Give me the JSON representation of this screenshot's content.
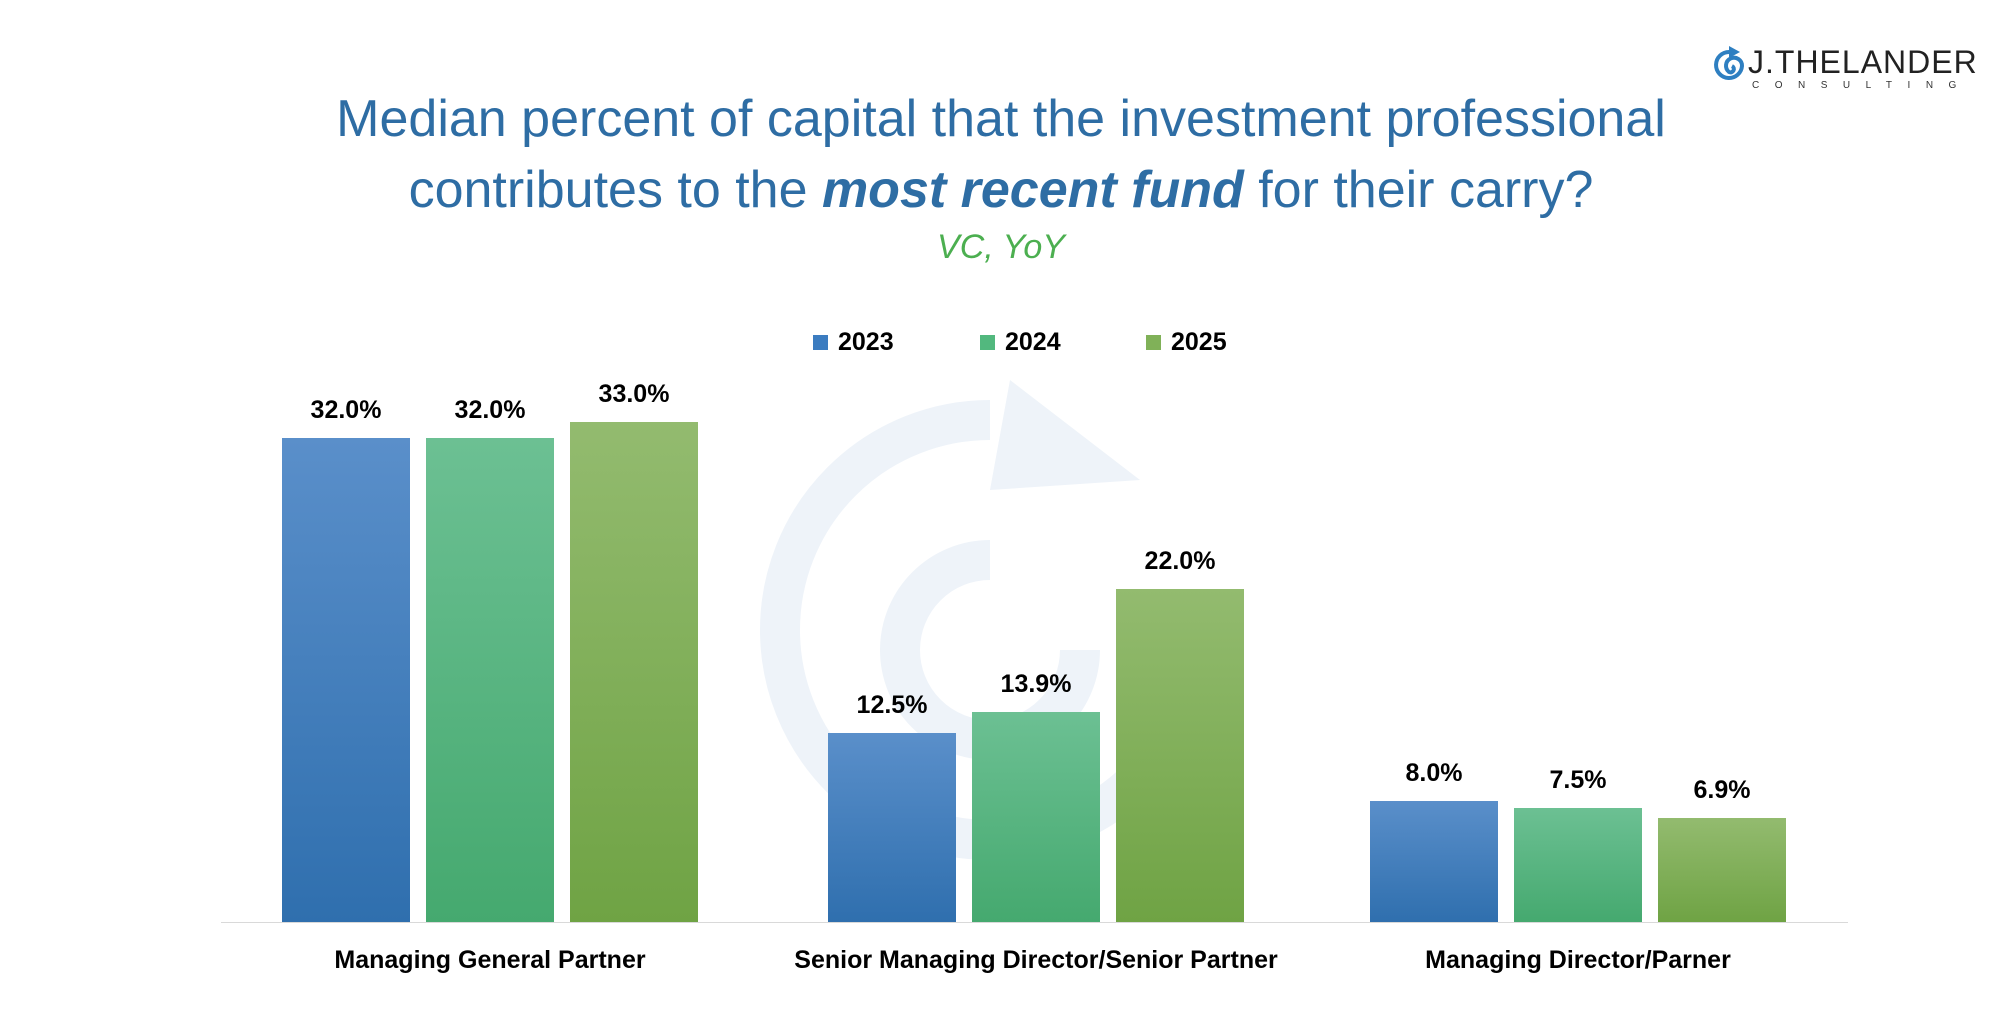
{
  "title_line1": "Median percent of capital that the investment professional",
  "title_line2_pre": "contributes to the ",
  "title_line2_em": "most recent fund",
  "title_line2_post": " for their carry?",
  "subtitle": "VC, YoY",
  "logo": {
    "name": "J.THELANDER",
    "tagline": "CONSULTING"
  },
  "colors": {
    "2023": "#3b7cc0",
    "2024": "#52b87e",
    "2025": "#80b158",
    "title": "#2e6da4",
    "subtitle": "#4caf50"
  },
  "chart_data": {
    "type": "bar",
    "title": "Median percent of capital that the investment professional contributes to the most recent fund for their carry?",
    "subtitle": "VC, YoY",
    "categories": [
      "Managing General Partner",
      "Senior Managing Director/Senior Partner",
      "Managing Director/Parner"
    ],
    "series": [
      {
        "name": "2023",
        "values": [
          32.0,
          12.5,
          8.0
        ],
        "labels": [
          "32.0%",
          "12.5%",
          "8.0%"
        ]
      },
      {
        "name": "2024",
        "values": [
          32.0,
          13.9,
          7.5
        ],
        "labels": [
          "32.0%",
          "13.9%",
          "7.5%"
        ]
      },
      {
        "name": "2025",
        "values": [
          33.0,
          22.0,
          6.9
        ],
        "labels": [
          "33.0%",
          "22.0%",
          "6.9%"
        ]
      }
    ],
    "ylim": [
      0,
      35
    ],
    "grid": false,
    "legend": "top-center",
    "xlabel": "",
    "ylabel": ""
  }
}
